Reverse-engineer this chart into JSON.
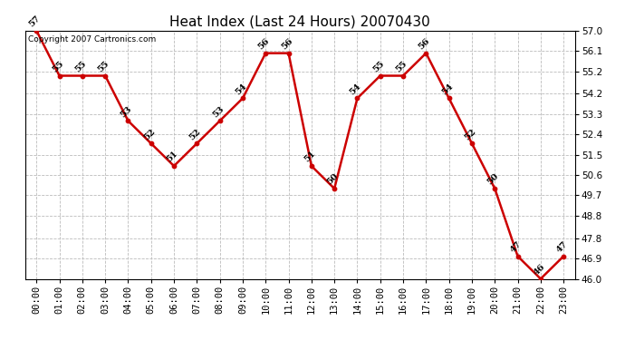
{
  "title": "Heat Index (Last 24 Hours) 20070430",
  "copyright": "Copyright 2007 Cartronics.com",
  "hours": [
    "00:00",
    "01:00",
    "02:00",
    "03:00",
    "04:00",
    "05:00",
    "06:00",
    "07:00",
    "08:00",
    "09:00",
    "10:00",
    "11:00",
    "12:00",
    "13:00",
    "14:00",
    "15:00",
    "16:00",
    "17:00",
    "18:00",
    "19:00",
    "20:00",
    "21:00",
    "22:00",
    "23:00"
  ],
  "values": [
    57,
    55,
    55,
    55,
    53,
    52,
    51,
    52,
    53,
    54,
    56,
    56,
    51,
    50,
    54,
    55,
    55,
    56,
    54,
    52,
    50,
    47,
    46,
    47
  ],
  "labels": [
    "57",
    "55",
    "55",
    "55",
    "53",
    "52",
    "51",
    "52",
    "53",
    "54",
    "56",
    "56",
    "51",
    "50",
    "54",
    "55",
    "55",
    "56",
    "54",
    "52",
    "50",
    "47",
    "46",
    "47"
  ],
  "line_color": "#cc0000",
  "marker_color": "#cc0000",
  "bg_color": "#ffffff",
  "plot_bg_color": "#ffffff",
  "grid_color": "#bbbbbb",
  "title_fontsize": 11,
  "label_fontsize": 7,
  "tick_fontsize": 7.5,
  "ylim_min": 46.0,
  "ylim_max": 57.0,
  "yticks": [
    46.0,
    46.9,
    47.8,
    48.8,
    49.7,
    50.6,
    51.5,
    52.4,
    53.3,
    54.2,
    55.2,
    56.1,
    57.0
  ]
}
